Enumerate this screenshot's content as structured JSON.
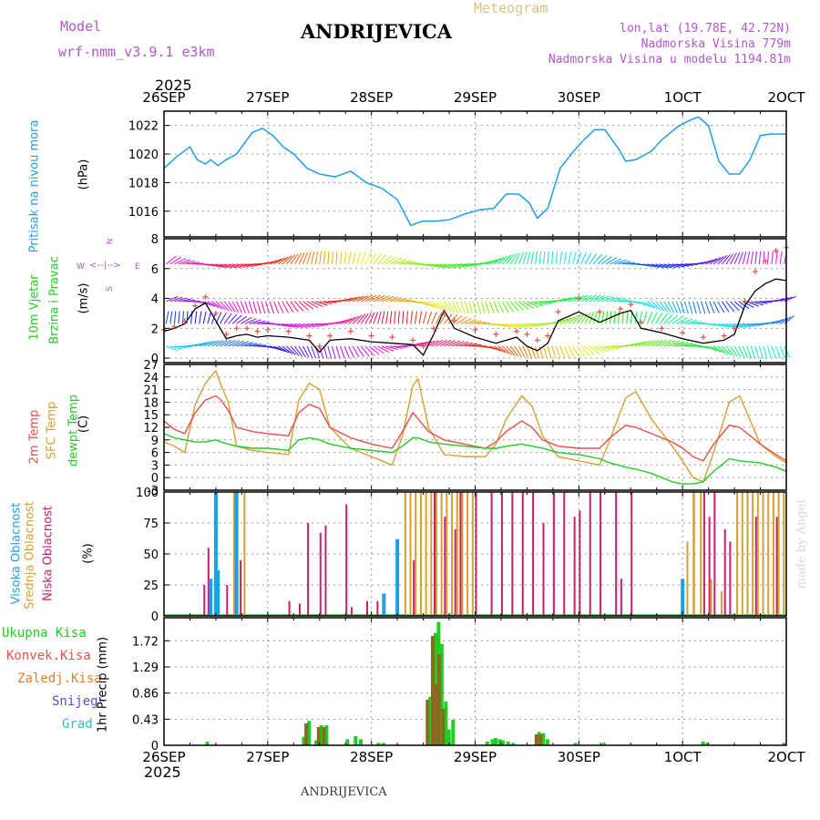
{
  "header": {
    "model_label": "Model",
    "model_name": "wrf-nmm_v3.9.1 e3km",
    "title": "ANDRIJEVICA",
    "meteogram": "Meteogram",
    "lonlat": "lon,lat (19.78E, 42.72N)",
    "altitude": "Nadmorska Visina 779m",
    "model_altitude": "Nadmorska Visina u modelu 1194.81m",
    "credit": "made by Angel",
    "footer": "ANDRIJEVICA"
  },
  "colors": {
    "pressure": "#1ea0e6",
    "wind_label": "#22cc22",
    "temp2m": "#e8504a",
    "sfc": "#d4a030",
    "dew": "#22cc22",
    "high_cloud": "#1ea0e6",
    "mid_cloud": "#d4a030",
    "low_cloud": "#c8206e",
    "total_precip": "#22cc22",
    "conv_precip": "#e8504a",
    "strat_precip": "#e08030",
    "snow": "#5050e0",
    "graupel": "#30c0c0",
    "model": "#b455d0"
  },
  "time_axis": {
    "year": "2025",
    "labels": [
      "26SEP",
      "27SEP",
      "28SEP",
      "29SEP",
      "30SEP",
      "1OCT",
      "2OCT"
    ]
  },
  "panel_labels": {
    "pressure": [
      "Pritisak na nivou mora",
      "(hPa)"
    ],
    "wind": [
      "10m Vjetar",
      "Brzina i Pravac",
      "(m/s)"
    ],
    "temp": [
      "2m Temp",
      "SFC Temp",
      "dewpt Temp",
      "(C)"
    ],
    "cloud": [
      "Visoka Oblacnost",
      "Srednja Oblacnost",
      "Niska Oblacnost",
      "(%)"
    ],
    "precip": [
      "Ukupna Kisa",
      "Konvek.Kisa",
      "Zaledj.Kisa",
      "Snijeg",
      "Grad",
      "1hr Precip (mm)"
    ],
    "compass": [
      "N",
      "S",
      "W",
      "E"
    ]
  },
  "chart_data": [
    {
      "type": "line",
      "title": "Pritisak na nivou mora",
      "ylabel": "(hPa)",
      "ylim": [
        1014.2,
        1023.0
      ],
      "yticks": [
        "1016",
        "1018",
        "1020",
        "1022"
      ],
      "ytick_values": [
        1016,
        1018,
        1020,
        1022
      ],
      "x_days": [
        0,
        0.12,
        0.25,
        0.32,
        0.4,
        0.45,
        0.52,
        0.6,
        0.7,
        0.85,
        0.95,
        1.05,
        1.15,
        1.25,
        1.38,
        1.5,
        1.65,
        1.8,
        1.95,
        2.1,
        2.25,
        2.38,
        2.45,
        2.5,
        2.62,
        2.75,
        2.9,
        3.05,
        3.18,
        3.3,
        3.42,
        3.52,
        3.6,
        3.7,
        3.82,
        3.95,
        4.05,
        4.15,
        4.25,
        4.38,
        4.45,
        4.55,
        4.7,
        4.8,
        4.95,
        5.05,
        5.15,
        5.25,
        5.35,
        5.45,
        5.55,
        5.65,
        5.75,
        5.85,
        5.95,
        6.0
      ],
      "pressure": [
        1019.0,
        1019.8,
        1020.5,
        1019.6,
        1019.3,
        1019.6,
        1019.2,
        1019.6,
        1020.0,
        1021.5,
        1021.8,
        1021.3,
        1020.5,
        1020.0,
        1019.0,
        1018.6,
        1018.4,
        1018.8,
        1018.0,
        1017.6,
        1016.8,
        1015.0,
        1015.2,
        1015.3,
        1015.3,
        1015.4,
        1015.8,
        1016.1,
        1016.2,
        1017.2,
        1017.2,
        1016.6,
        1015.5,
        1016.2,
        1019.0,
        1020.2,
        1021.0,
        1021.7,
        1021.7,
        1020.4,
        1019.5,
        1019.6,
        1020.2,
        1021.0,
        1021.9,
        1022.3,
        1022.6,
        1022.0,
        1019.5,
        1018.6,
        1018.6,
        1019.6,
        1021.3,
        1021.4,
        1021.4,
        1021.4
      ]
    },
    {
      "type": "line",
      "title": "10m Vjetar Brzina i Pravac",
      "ylabel": "(m/s)",
      "ylim": [
        -0.3,
        8.0
      ],
      "yticks": [
        "0",
        "2",
        "4",
        "6",
        "8"
      ],
      "ytick_values": [
        0,
        2,
        4,
        6,
        8
      ],
      "x_days": [
        0,
        0.1,
        0.2,
        0.3,
        0.4,
        0.5,
        0.6,
        0.7,
        0.8,
        0.9,
        1.0,
        1.2,
        1.4,
        1.5,
        1.6,
        1.8,
        2.0,
        2.2,
        2.4,
        2.5,
        2.6,
        2.7,
        2.8,
        3.0,
        3.2,
        3.4,
        3.5,
        3.6,
        3.7,
        3.8,
        4.0,
        4.2,
        4.4,
        4.5,
        4.6,
        4.8,
        5.0,
        5.2,
        5.4,
        5.5,
        5.6,
        5.7,
        5.8,
        5.9,
        6.0
      ],
      "speed_mean": [
        1.8,
        2.0,
        2.3,
        3.3,
        3.7,
        2.5,
        1.3,
        1.5,
        1.6,
        1.4,
        1.5,
        1.4,
        1.2,
        0.4,
        1.2,
        1.3,
        1.1,
        1.0,
        0.9,
        0.2,
        1.6,
        3.2,
        2.0,
        1.4,
        1.0,
        1.4,
        0.8,
        0.5,
        1.0,
        2.5,
        3.1,
        2.4,
        3.0,
        3.2,
        2.0,
        1.7,
        1.3,
        1.0,
        1.2,
        1.6,
        3.5,
        4.5,
        5.0,
        5.3,
        5.2
      ],
      "speed_mark": [
        1.9,
        2.1,
        2.5,
        3.5,
        4.1,
        3.0,
        1.6,
        2.0,
        2.0,
        1.8,
        1.9,
        1.8,
        1.5,
        0.8,
        1.5,
        1.8,
        1.5,
        1.4,
        1.2,
        0.8,
        2.0,
        3.0,
        2.5,
        1.9,
        1.6,
        1.8,
        1.6,
        1.2,
        1.5,
        3.1,
        4.0,
        3.1,
        3.3,
        3.6,
        2.4,
        2.0,
        1.7,
        1.4,
        1.5,
        2.0,
        3.8,
        5.8,
        6.5,
        7.2,
        7.4
      ],
      "wind_levels": [
        0.8,
        2.3,
        3.8,
        6.3
      ]
    },
    {
      "type": "line",
      "title": "2m Temp / SFC Temp / dewpt Temp",
      "ylabel": "(C)",
      "ylim": [
        -3,
        27
      ],
      "yticks": [
        "-3",
        "0",
        "3",
        "6",
        "9",
        "12",
        "15",
        "18",
        "21",
        "24",
        "27"
      ],
      "ytick_values": [
        -3,
        0,
        3,
        6,
        9,
        12,
        15,
        18,
        21,
        24,
        27
      ],
      "x_days": [
        0,
        0.1,
        0.2,
        0.3,
        0.4,
        0.5,
        0.55,
        0.62,
        0.7,
        0.85,
        1.0,
        1.2,
        1.3,
        1.4,
        1.5,
        1.6,
        1.8,
        2.0,
        2.2,
        2.3,
        2.4,
        2.45,
        2.55,
        2.7,
        2.9,
        3.1,
        3.2,
        3.3,
        3.45,
        3.55,
        3.65,
        3.8,
        4.0,
        4.2,
        4.3,
        4.45,
        4.55,
        4.7,
        4.9,
        5.0,
        5.1,
        5.2,
        5.3,
        5.45,
        5.55,
        5.75,
        5.9,
        6.0
      ],
      "temp2m": [
        13.5,
        11.5,
        10.5,
        15.5,
        18.5,
        19.5,
        18.5,
        16.0,
        12.0,
        11.0,
        10.5,
        10.0,
        15.5,
        17.5,
        16.5,
        12.0,
        9.5,
        8.0,
        7.0,
        11.0,
        15.5,
        14.0,
        11.0,
        9.0,
        8.0,
        7.0,
        8.5,
        11.0,
        13.5,
        12.0,
        9.0,
        7.5,
        7.0,
        7.0,
        9.5,
        12.5,
        12.0,
        10.5,
        8.5,
        7.0,
        5.0,
        4.0,
        8.0,
        12.5,
        12.0,
        8.0,
        5.5,
        4.0
      ],
      "sfc": [
        8.5,
        7.5,
        6.0,
        17.5,
        22.5,
        25.5,
        22.0,
        18.0,
        7.5,
        6.5,
        6.0,
        5.5,
        18.5,
        22.5,
        21.0,
        12.0,
        7.0,
        5.0,
        3.0,
        10.0,
        22.0,
        23.5,
        12.0,
        5.5,
        5.0,
        5.0,
        8.0,
        14.0,
        19.5,
        17.0,
        10.0,
        5.0,
        4.0,
        3.0,
        9.0,
        19.0,
        20.5,
        14.0,
        7.5,
        4.0,
        0.0,
        -1.0,
        6.0,
        18.0,
        19.5,
        8.0,
        5.0,
        3.5
      ],
      "dewpt": [
        10.5,
        9.5,
        9.0,
        8.5,
        8.5,
        9.0,
        8.5,
        8.0,
        7.5,
        7.0,
        7.0,
        6.5,
        9.0,
        9.5,
        9.0,
        8.0,
        7.0,
        6.5,
        6.0,
        7.5,
        9.5,
        9.5,
        8.5,
        8.0,
        7.5,
        7.0,
        7.0,
        7.5,
        8.0,
        7.5,
        7.0,
        6.0,
        5.5,
        4.5,
        3.5,
        2.5,
        2.0,
        1.0,
        -1.0,
        -1.5,
        -1.5,
        -1.0,
        1.5,
        4.5,
        4.0,
        3.5,
        2.5,
        1.5
      ]
    },
    {
      "type": "bar",
      "title": "Oblacnost",
      "ylabel": "(%)",
      "ylim": [
        0,
        100
      ],
      "yticks": [
        "0",
        "25",
        "50",
        "75",
        "100"
      ],
      "ytick_values": [
        0,
        25,
        50,
        75,
        100
      ],
      "high": [
        [
          0.45,
          30
        ],
        [
          0.5,
          100
        ],
        [
          0.52,
          37
        ],
        [
          0.7,
          100
        ],
        [
          2.12,
          18
        ],
        [
          2.25,
          62
        ],
        [
          5.0,
          30
        ]
      ],
      "mid": [
        [
          0.65,
          100
        ],
        [
          0.75,
          100
        ],
        [
          2.3,
          100
        ],
        [
          2.35,
          100
        ],
        [
          2.4,
          100
        ],
        [
          2.45,
          100
        ],
        [
          2.5,
          100
        ],
        [
          2.55,
          100
        ],
        [
          2.6,
          100
        ],
        [
          2.65,
          100
        ],
        [
          2.7,
          100
        ],
        [
          2.75,
          100
        ],
        [
          2.8,
          100
        ],
        [
          2.85,
          100
        ],
        [
          2.9,
          100
        ],
        [
          2.95,
          100
        ],
        [
          5.02,
          60
        ],
        [
          5.08,
          100
        ],
        [
          5.15,
          100
        ],
        [
          5.25,
          30
        ],
        [
          5.35,
          20
        ],
        [
          5.5,
          100
        ],
        [
          5.55,
          100
        ],
        [
          5.6,
          100
        ],
        [
          5.65,
          100
        ],
        [
          5.7,
          100
        ],
        [
          5.75,
          100
        ],
        [
          5.8,
          100
        ],
        [
          5.85,
          100
        ],
        [
          5.9,
          100
        ],
        [
          5.95,
          100
        ]
      ],
      "low": [
        [
          0.38,
          25
        ],
        [
          0.42,
          55
        ],
        [
          0.6,
          25
        ],
        [
          0.73,
          45
        ],
        [
          1.2,
          12
        ],
        [
          1.3,
          10
        ],
        [
          1.38,
          75
        ],
        [
          1.5,
          67
        ],
        [
          1.55,
          73
        ],
        [
          1.75,
          90
        ],
        [
          1.8,
          7
        ],
        [
          1.95,
          12
        ],
        [
          2.05,
          12
        ],
        [
          2.4,
          45
        ],
        [
          2.6,
          100
        ],
        [
          2.7,
          80
        ],
        [
          2.8,
          70
        ],
        [
          2.85,
          100
        ],
        [
          3.0,
          100
        ],
        [
          3.15,
          100
        ],
        [
          3.25,
          100
        ],
        [
          3.35,
          100
        ],
        [
          3.45,
          100
        ],
        [
          3.55,
          100
        ],
        [
          3.65,
          75
        ],
        [
          3.75,
          100
        ],
        [
          3.85,
          100
        ],
        [
          3.95,
          80
        ],
        [
          4.0,
          85
        ],
        [
          4.1,
          100
        ],
        [
          4.2,
          100
        ],
        [
          4.35,
          100
        ],
        [
          4.4,
          30
        ],
        [
          4.5,
          100
        ],
        [
          5.1,
          100
        ],
        [
          5.2,
          100
        ],
        [
          5.25,
          80
        ],
        [
          5.3,
          100
        ],
        [
          5.4,
          70
        ],
        [
          5.45,
          60
        ],
        [
          5.7,
          80
        ],
        [
          5.9,
          80
        ]
      ]
    },
    {
      "type": "bar",
      "title": "1hr Precip",
      "ylabel": "1hr Precip (mm)",
      "ylim": [
        0,
        2.1
      ],
      "yticks": [
        "0",
        "0.43",
        "0.86",
        "1.29",
        "1.72"
      ],
      "ytick_values": [
        0,
        0.43,
        0.86,
        1.29,
        1.72
      ],
      "total": [
        [
          0.4,
          0.06
        ],
        [
          1.33,
          0.14
        ],
        [
          1.38,
          0.4
        ],
        [
          1.45,
          0.08
        ],
        [
          1.5,
          0.33
        ],
        [
          1.55,
          0.33
        ],
        [
          1.75,
          0.1
        ],
        [
          1.83,
          0.15
        ],
        [
          1.88,
          0.1
        ],
        [
          2.05,
          0.04
        ],
        [
          2.1,
          0.04
        ],
        [
          2.55,
          0.8
        ],
        [
          2.57,
          0.2
        ],
        [
          2.6,
          1.85
        ],
        [
          2.63,
          2.03
        ],
        [
          2.66,
          1.67
        ],
        [
          2.7,
          0.72
        ],
        [
          2.73,
          0.26
        ],
        [
          2.77,
          0.42
        ],
        [
          3.1,
          0.06
        ],
        [
          3.15,
          0.1
        ],
        [
          3.18,
          0.12
        ],
        [
          3.22,
          0.1
        ],
        [
          3.25,
          0.08
        ],
        [
          3.3,
          0.06
        ],
        [
          3.35,
          0.04
        ],
        [
          3.6,
          0.22
        ],
        [
          3.64,
          0.2
        ],
        [
          3.68,
          0.1
        ],
        [
          3.95,
          0.04
        ],
        [
          4.2,
          0.04
        ],
        [
          5.18,
          0.06
        ],
        [
          5.22,
          0.04
        ],
        [
          5.96,
          0.04
        ]
      ],
      "strat": [
        [
          1.38,
          0.36
        ],
        [
          1.5,
          0.3
        ],
        [
          1.55,
          0.3
        ],
        [
          2.55,
          0.75
        ],
        [
          2.6,
          1.8
        ],
        [
          2.63,
          1.0
        ],
        [
          2.66,
          1.5
        ],
        [
          2.7,
          0.6
        ],
        [
          3.6,
          0.18
        ],
        [
          3.64,
          0.18
        ]
      ]
    }
  ]
}
